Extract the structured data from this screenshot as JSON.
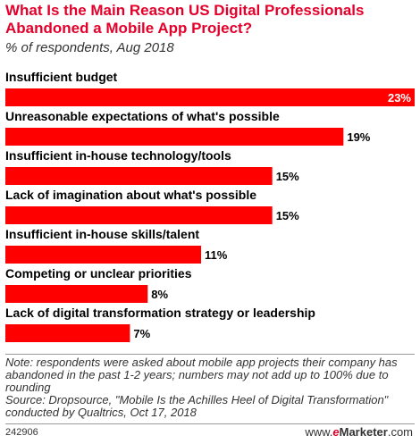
{
  "header": {
    "title": "What Is the Main Reason US Digital Professionals Abandoned a Mobile App Project?",
    "subtitle": "% of respondents, Aug 2018"
  },
  "chart_data": {
    "type": "bar",
    "orientation": "horizontal",
    "categories": [
      "Insufficient budget",
      "Unreasonable expectations of what's possible",
      "Insufficient in-house technology/tools",
      "Lack of imagination about what's possible",
      "Insufficient in-house skills/talent",
      "Competing or unclear priorities",
      "Lack of digital transformation strategy or leadership"
    ],
    "values": [
      23,
      19,
      15,
      15,
      11,
      8,
      7
    ],
    "value_labels": [
      "23%",
      "19%",
      "15%",
      "15%",
      "11%",
      "8%",
      "7%"
    ],
    "xlim": [
      0,
      23
    ],
    "grid": false,
    "bar_color": "#ff0000"
  },
  "footer": {
    "note": "Note: respondents were asked about mobile app projects their company has abandoned in the past 1-2 years; numbers may not add up to 100% due to rounding",
    "source": "Source: Dropsource, \"Mobile Is the Achilles Heel of Digital Transformation\" conducted by Qualtrics, Oct 17, 2018",
    "chart_id": "242906",
    "brand_prefix": "www.",
    "brand_e": "e",
    "brand_name": "Marketer",
    "brand_suffix": ".com"
  }
}
